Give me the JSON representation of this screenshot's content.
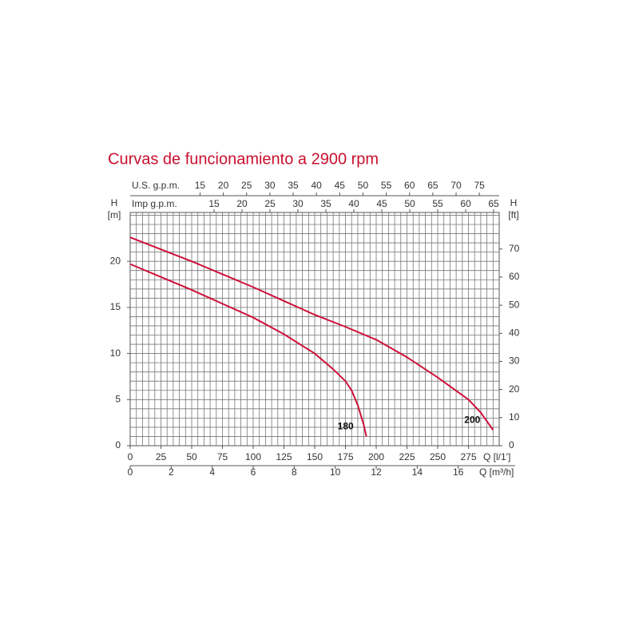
{
  "chart_data": {
    "type": "line",
    "title": "Curvas de funcionamiento a 2900 rpm",
    "x_label": "Q [l/1']",
    "xlim": [
      0,
      300
    ],
    "xticks": [
      0,
      25,
      50,
      75,
      100,
      125,
      150,
      175,
      200,
      225,
      250,
      275
    ],
    "y_label": "H",
    "y_unit": "[m]",
    "ylim": [
      0,
      25.3
    ],
    "yticks": [
      0,
      5,
      10,
      15,
      20
    ],
    "y2_label": "H",
    "y2_unit": "[ft]",
    "y2lim": [
      0,
      83
    ],
    "y2ticks": [
      0,
      10,
      20,
      30,
      40,
      50,
      60,
      70
    ],
    "x_grid_step": 5,
    "y_grid_step": 1,
    "extra_x_axes": [
      {
        "label": "Q [m³/h]",
        "lim": [
          0,
          18
        ],
        "ticks": [
          0,
          2,
          4,
          6,
          8,
          10,
          12,
          14,
          16
        ]
      },
      {
        "label": "U.S. g.p.m.",
        "lim": [
          0,
          79.26
        ],
        "ticks": [
          15,
          20,
          25,
          30,
          35,
          40,
          45,
          50,
          55,
          60,
          65,
          70,
          75
        ]
      },
      {
        "label": "Imp g.p.m.",
        "lim": [
          0,
          66
        ],
        "ticks": [
          15,
          20,
          25,
          30,
          35,
          40,
          45,
          50,
          55,
          60,
          65
        ]
      }
    ],
    "series": [
      {
        "name": "180",
        "color": "#d0103a",
        "x": [
          0,
          25,
          50,
          75,
          100,
          125,
          150,
          165,
          175,
          180,
          185,
          190,
          192
        ],
        "values": [
          19.7,
          18.3,
          16.9,
          15.4,
          13.9,
          12.1,
          10.0,
          8.3,
          7.0,
          6.0,
          4.4,
          2.2,
          1.0
        ]
      },
      {
        "name": "200",
        "color": "#d0103a",
        "x": [
          0,
          25,
          50,
          75,
          100,
          125,
          150,
          175,
          200,
          225,
          250,
          275,
          285,
          295
        ],
        "values": [
          22.6,
          21.3,
          20.0,
          18.6,
          17.2,
          15.7,
          14.2,
          12.9,
          11.5,
          9.6,
          7.4,
          5.0,
          3.6,
          1.7
        ]
      }
    ]
  }
}
